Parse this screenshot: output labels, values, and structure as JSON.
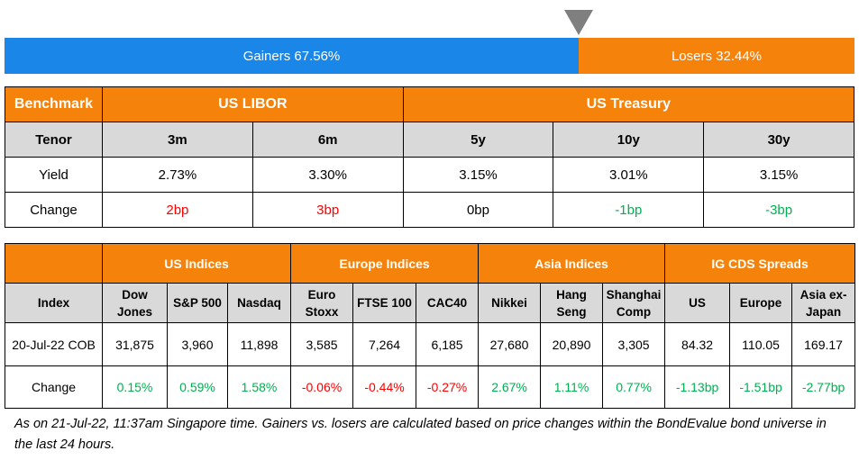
{
  "breadth": {
    "gainers": "Gainers 67.56%",
    "losers": "Losers 32.44%",
    "gainers_pct": 67.56,
    "losers_pct": 32.44
  },
  "rates": {
    "benchmark": "Benchmark",
    "libor": "US LIBOR",
    "treasury": "US Treasury",
    "tenor_label": "Tenor",
    "tenors": [
      "3m",
      "6m",
      "5y",
      "10y",
      "30y"
    ],
    "yield_label": "Yield",
    "yields": [
      "2.73%",
      "3.30%",
      "3.15%",
      "3.01%",
      "3.15%"
    ],
    "change_label": "Change",
    "changes": [
      "2bp",
      "3bp",
      "0bp",
      "-1bp",
      "-3bp"
    ]
  },
  "indices": {
    "groups": [
      "US Indices",
      "Europe Indices",
      "Asia Indices",
      "IG CDS Spreads"
    ],
    "index_label": "Index",
    "columns": [
      [
        "Dow",
        "Jones"
      ],
      [
        "S&P 500",
        ""
      ],
      [
        "Nasdaq",
        ""
      ],
      [
        "Euro",
        "Stoxx"
      ],
      [
        "FTSE 100",
        ""
      ],
      [
        "CAC40",
        ""
      ],
      [
        "Nikkei",
        ""
      ],
      [
        "Hang",
        "Seng"
      ],
      [
        "Shanghai",
        "Comp"
      ],
      [
        "US",
        ""
      ],
      [
        "Europe",
        ""
      ],
      [
        "Asia ex-",
        "Japan"
      ]
    ],
    "date_label": "20-Jul-22 COB",
    "values": [
      "31,875",
      "3,960",
      "11,898",
      "3,585",
      "7,264",
      "6,185",
      "27,680",
      "20,890",
      "3,305",
      "84.32",
      "110.05",
      "169.17"
    ],
    "change_label": "Change",
    "changes": [
      "0.15%",
      "0.59%",
      "1.58%",
      "-0.06%",
      "-0.44%",
      "-0.27%",
      "2.67%",
      "1.11%",
      "0.77%",
      "-1.13bp",
      "-1.51bp",
      "-2.77bp"
    ]
  },
  "footnote": "As on 21-Jul-22, 11:37am Singapore time. Gainers vs. losers are calculated based on price changes within the BondEvalue bond universe in the last 24 hours.",
  "colors": {
    "orange": "#f5820a",
    "blue": "#1a86e8",
    "green": "#00b050",
    "red": "#ff0000"
  }
}
